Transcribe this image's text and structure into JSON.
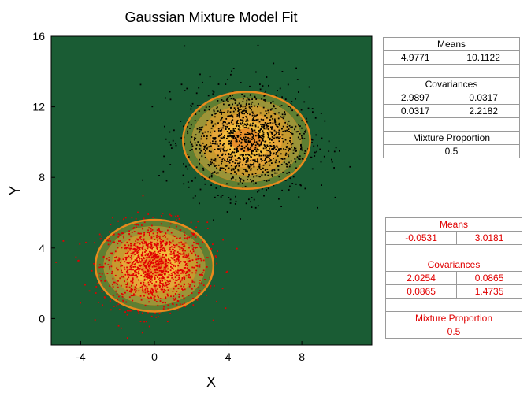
{
  "chart_data": {
    "type": "scatter",
    "title": "Gaussian Mixture Model Fit",
    "xlabel": "X",
    "ylabel": "Y",
    "xlim": [
      -5.6,
      11.8
    ],
    "ylim": [
      -1.5,
      16.0
    ],
    "xticks": [
      -4,
      0,
      4,
      8
    ],
    "yticks": [
      0,
      4,
      8,
      12,
      16
    ],
    "grid": false,
    "background_color": "#1a5c34",
    "contour_colors": [
      "#5f7f32",
      "#9b9438",
      "#c79a2f",
      "#e5a63a",
      "#f2bb3d",
      "#e98f2c"
    ],
    "outline_color": "#e88a1c",
    "series": [
      {
        "color": "#e00000",
        "mean": [
          0,
          3
        ],
        "std": [
          1.42,
          1.21
        ],
        "count": 1200,
        "contour_radius": [
          3.2,
          2.6
        ]
      },
      {
        "color": "#000000",
        "mean": [
          5,
          10.1
        ],
        "std": [
          1.7,
          1.5
        ],
        "count": 1200,
        "contour_radius": [
          3.45,
          2.75
        ]
      }
    ]
  },
  "tables": {
    "black": {
      "means_label": "Means",
      "means": [
        "4.9771",
        "10.1122"
      ],
      "cov_label": "Covariances",
      "cov": [
        [
          "2.9897",
          "0.0317"
        ],
        [
          "0.0317",
          "2.2182"
        ]
      ],
      "mix_label": "Mixture Proportion",
      "mix": "0.5"
    },
    "red": {
      "means_label": "Means",
      "means": [
        "-0.0531",
        "3.0181"
      ],
      "cov_label": "Covariances",
      "cov": [
        [
          "2.0254",
          "0.0865"
        ],
        [
          "0.0865",
          "1.4735"
        ]
      ],
      "mix_label": "Mixture Proportion",
      "mix": "0.5"
    }
  }
}
